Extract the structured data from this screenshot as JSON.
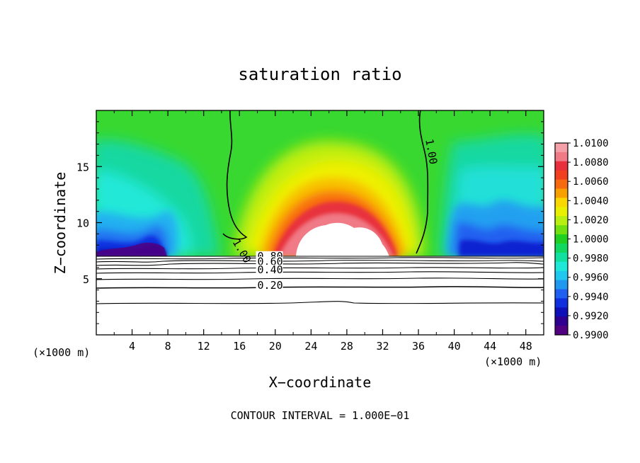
{
  "chart_data": {
    "type": "heatmap",
    "title": "saturation ratio",
    "xlabel": "X−coordinate",
    "ylabel": "Z−coordinate",
    "x_unit_left": "(×1000 m)",
    "x_unit_right": "(×1000 m)",
    "footer": "CONTOUR INTERVAL = 1.000E−01",
    "xlim": [
      0,
      50
    ],
    "ylim": [
      0,
      20
    ],
    "x_ticks": [
      4,
      8,
      12,
      16,
      20,
      24,
      28,
      32,
      36,
      40,
      44,
      48
    ],
    "y_ticks": [
      5,
      10,
      15
    ],
    "colorbar": {
      "levels": [
        "1.0100",
        "1.0080",
        "1.0060",
        "1.0040",
        "1.0020",
        "1.0000",
        "0.9980",
        "0.9960",
        "0.9940",
        "0.9920",
        "0.9900"
      ],
      "colors": [
        "#f4a0a8",
        "#f07a86",
        "#e8303c",
        "#f04020",
        "#f66a10",
        "#f8a000",
        "#f8d800",
        "#e8f000",
        "#b8ee10",
        "#70e010",
        "#20d020",
        "#10d860",
        "#10e0a0",
        "#20e8d8",
        "#20c8f0",
        "#2098f0",
        "#2060f0",
        "#1030e0",
        "#1010b8",
        "#300090",
        "#500080"
      ]
    },
    "contour_labels": [
      {
        "text": "1.00",
        "x": 15.2,
        "z": 8.3,
        "rotate": 60
      },
      {
        "text": "1.00",
        "x": 36.8,
        "z": 17.4,
        "rotate": 80
      },
      {
        "text": "0.80",
        "x": 18.0,
        "z": 6.7,
        "rotate": 0
      },
      {
        "text": "0.60",
        "x": 18.0,
        "z": 6.2,
        "rotate": 0
      },
      {
        "text": "0.40",
        "x": 18.0,
        "z": 5.5,
        "rotate": 0
      },
      {
        "text": "0.20",
        "x": 18.0,
        "z": 4.1,
        "rotate": 0
      }
    ]
  }
}
